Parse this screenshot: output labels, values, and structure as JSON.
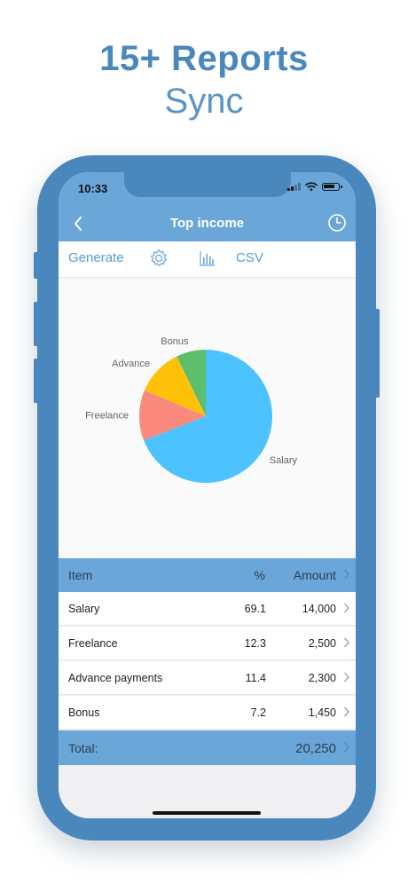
{
  "promo": {
    "line1": "15+ Reports",
    "line2": "Sync"
  },
  "status_bar": {
    "time": "10:33"
  },
  "nav": {
    "title": "Top income",
    "back_icon": "chevron-left-icon",
    "history_icon": "clock-icon"
  },
  "toolbar": {
    "generate_label": "Generate",
    "settings_icon": "gear-icon",
    "chart_icon": "bar-chart-icon",
    "csv_label": "CSV"
  },
  "colors": {
    "accent": "#6aa7d8",
    "brand": "#4a87bd",
    "salary": "#4cc3ff",
    "freelance": "#f98a7d",
    "advance": "#ffc107",
    "bonus": "#5dbf6e"
  },
  "chart_data": {
    "type": "pie",
    "labels": [
      "Salary",
      "Freelance",
      "Advance",
      "Bonus"
    ],
    "values": [
      69.1,
      12.3,
      11.4,
      7.2
    ],
    "colors": [
      "#4cc3ff",
      "#f98a7d",
      "#ffc107",
      "#5dbf6e"
    ]
  },
  "table": {
    "headers": {
      "item": "Item",
      "percent": "%",
      "amount": "Amount"
    },
    "rows": [
      {
        "item": "Salary",
        "percent": "69.1",
        "amount": "14,000"
      },
      {
        "item": "Freelance",
        "percent": "12.3",
        "amount": "2,500"
      },
      {
        "item": "Advance payments",
        "percent": "11.4",
        "amount": "2,300"
      },
      {
        "item": "Bonus",
        "percent": "7.2",
        "amount": "1,450"
      }
    ],
    "total_label": "Total:",
    "total_amount": "20,250"
  }
}
